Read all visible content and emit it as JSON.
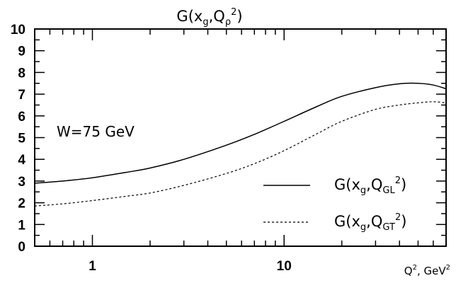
{
  "chart_data": {
    "type": "line",
    "title_parts": {
      "base": "G(x",
      "sub1": "g",
      "mid": ",Q",
      "sub2": "ρ",
      "sup": "2",
      "end": ")"
    },
    "annotation": "W=75 GeV",
    "xlabel_parts": {
      "q": "Q",
      "sup1": "2",
      "unit": ", GeV",
      "sup2": "2"
    },
    "x_scale": "log",
    "xlim": [
      0.5,
      70
    ],
    "ylim": [
      0,
      10
    ],
    "x_ticks": [
      1,
      10
    ],
    "x_tick_labels": [
      "1",
      "10"
    ],
    "y_ticks": [
      0,
      1,
      2,
      3,
      4,
      5,
      6,
      7,
      8,
      9,
      10
    ],
    "y_tick_labels": [
      "0",
      "1",
      "2",
      "3",
      "4",
      "5",
      "6",
      "7",
      "8",
      "9",
      "10"
    ],
    "legend_position": "bottom-right",
    "series": [
      {
        "name_parts": {
          "base": "G(x",
          "sub1": "g",
          "mid": ",Q",
          "sub2": "GL",
          "sup": "2",
          "end": ")"
        },
        "style": "solid",
        "x": [
          0.5,
          0.7,
          1,
          1.5,
          2,
          3,
          5,
          7,
          10,
          15,
          20,
          30,
          40,
          50,
          60,
          70
        ],
        "y": [
          2.9,
          3.0,
          3.15,
          3.4,
          3.6,
          4.0,
          4.65,
          5.15,
          5.75,
          6.45,
          6.9,
          7.3,
          7.48,
          7.5,
          7.42,
          7.25
        ]
      },
      {
        "name_parts": {
          "base": "G(x",
          "sub1": "g",
          "mid": ",Q",
          "sub2": "GT",
          "sup": "2",
          "end": ")"
        },
        "style": "dashed",
        "x": [
          0.5,
          0.7,
          1,
          1.5,
          2,
          3,
          5,
          7,
          10,
          15,
          20,
          30,
          40,
          50,
          60,
          70
        ],
        "y": [
          1.85,
          1.95,
          2.1,
          2.3,
          2.45,
          2.8,
          3.35,
          3.8,
          4.4,
          5.2,
          5.75,
          6.3,
          6.5,
          6.6,
          6.65,
          6.6
        ]
      }
    ]
  }
}
